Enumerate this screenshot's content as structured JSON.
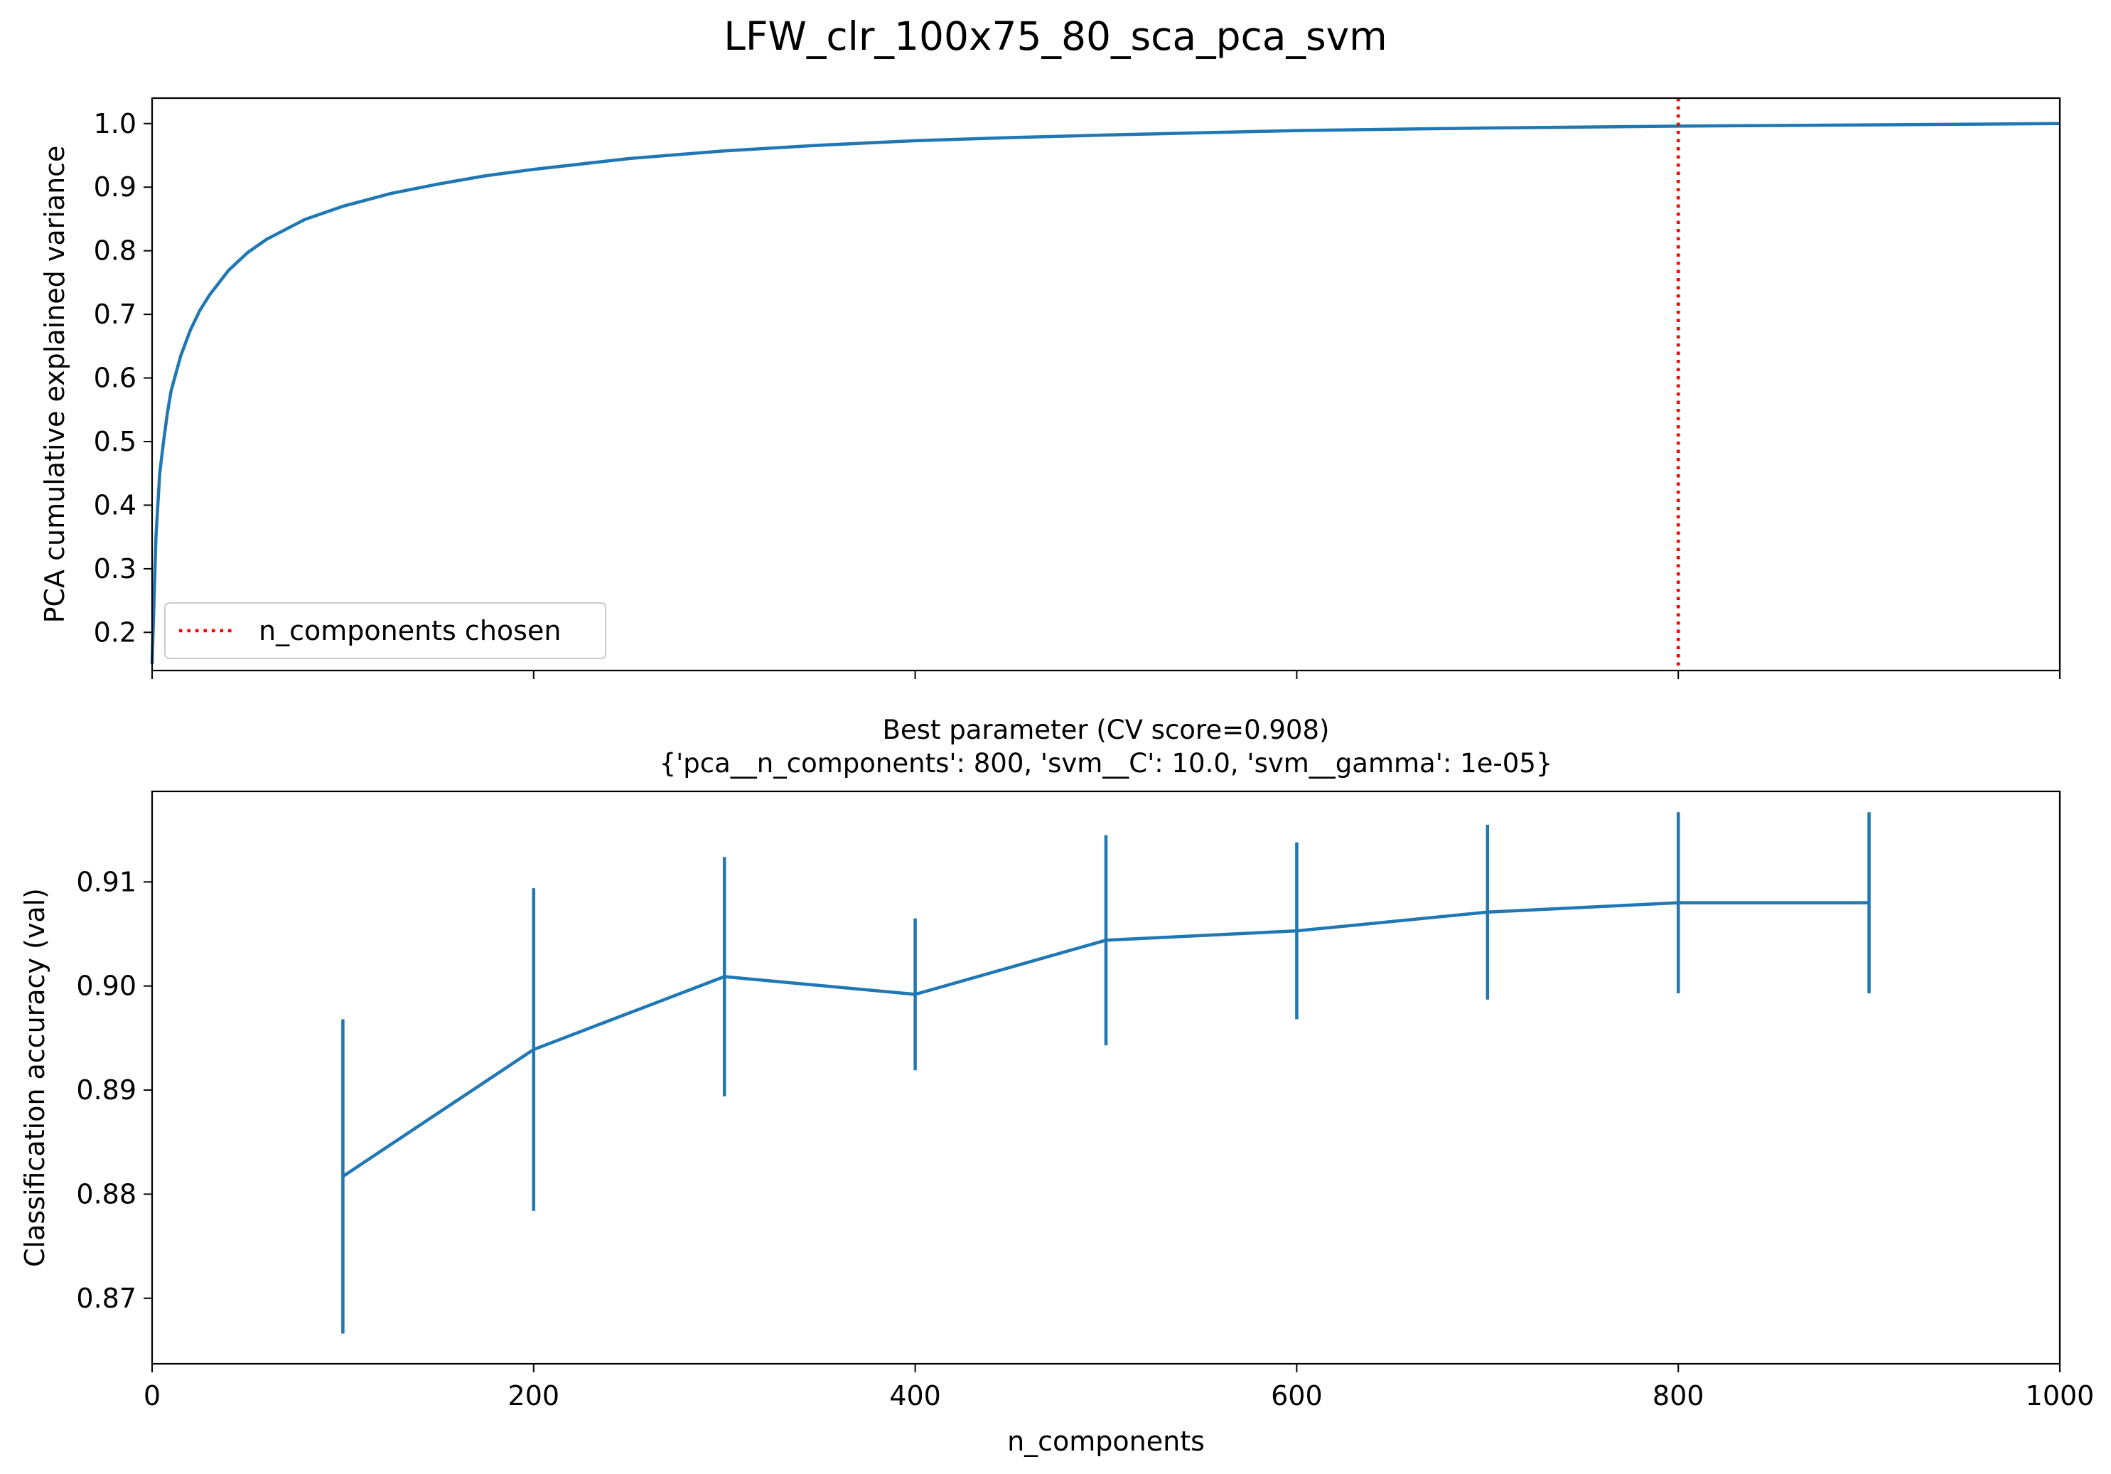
{
  "figure": {
    "title": "LFW_clr_100x75_80_sca_pca_svm"
  },
  "chart_data": [
    {
      "type": "line",
      "panel": "top",
      "title": "",
      "xlabel": "",
      "ylabel": "PCA cumulative explained variance",
      "xlim": [
        0,
        1000
      ],
      "ylim": [
        0.14,
        1.04
      ],
      "x_ticks": [
        0,
        200,
        400,
        600,
        800,
        1000
      ],
      "x_tick_labels_shown": false,
      "y_ticks": [
        0.2,
        0.3,
        0.4,
        0.5,
        0.6,
        0.7,
        0.8,
        0.9,
        1.0
      ],
      "y_tick_labels": [
        "0.2",
        "0.3",
        "0.4",
        "0.5",
        "0.6",
        "0.7",
        "0.8",
        "0.9",
        "1.0"
      ],
      "grid": false,
      "legend_position": "lower-left",
      "series": [
        {
          "color": "#1f77b4",
          "x": [
            0,
            2,
            4,
            6,
            8,
            10,
            15,
            20,
            25,
            30,
            40,
            50,
            60,
            80,
            100,
            125,
            150,
            175,
            200,
            250,
            300,
            350,
            400,
            450,
            500,
            600,
            700,
            800,
            900,
            1000
          ],
          "y": [
            0.15,
            0.35,
            0.45,
            0.5,
            0.545,
            0.58,
            0.635,
            0.675,
            0.706,
            0.73,
            0.769,
            0.797,
            0.818,
            0.849,
            0.87,
            0.89,
            0.905,
            0.918,
            0.928,
            0.945,
            0.957,
            0.966,
            0.973,
            0.978,
            0.982,
            0.989,
            0.993,
            0.996,
            0.998,
            1.0
          ]
        }
      ],
      "vline": {
        "x": 800,
        "color": "#ff0000",
        "style": "dotted",
        "label": "n_components chosen"
      }
    },
    {
      "type": "errorbar",
      "panel": "bottom",
      "title": "Best parameter (CV score=0.908)",
      "subtitle": "{'pca__n_components': 800, 'svm__C': 10.0, 'svm__gamma': 1e-05}",
      "xlabel": "n_components",
      "ylabel": "Classification accuracy (val)",
      "xlim": [
        0,
        1000
      ],
      "ylim": [
        0.8637,
        0.9187
      ],
      "x_ticks": [
        0,
        200,
        400,
        600,
        800,
        1000
      ],
      "x_tick_labels": [
        "0",
        "200",
        "400",
        "600",
        "800",
        "1000"
      ],
      "y_ticks": [
        0.87,
        0.88,
        0.89,
        0.9,
        0.91
      ],
      "y_tick_labels": [
        "0.87",
        "0.88",
        "0.89",
        "0.90",
        "0.91"
      ],
      "grid": false,
      "series": [
        {
          "color": "#1f77b4",
          "x": [
            100,
            200,
            300,
            400,
            500,
            600,
            700,
            800,
            900
          ],
          "y": [
            0.8817,
            0.8939,
            0.9009,
            0.8992,
            0.9044,
            0.9053,
            0.9071,
            0.908,
            0.908
          ],
          "err": [
            0.0151,
            0.0155,
            0.0115,
            0.0073,
            0.0101,
            0.0085,
            0.0084,
            0.0087,
            0.0087
          ]
        }
      ]
    }
  ]
}
